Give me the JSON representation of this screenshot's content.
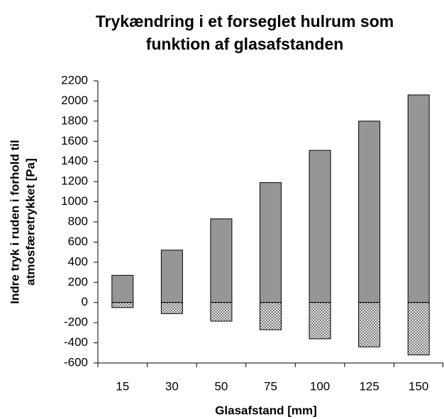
{
  "chart_data": {
    "type": "bar",
    "title": [
      "Trykændring i et forseglet hulrum som",
      "funktion af glasafstanden"
    ],
    "x_label": "Glasafstand   [mm]",
    "y_label": [
      "Indre tryk i ruden i forhold til",
      "atmosfæretrykket   [Pa]"
    ],
    "categories": [
      "15",
      "30",
      "50",
      "75",
      "100",
      "125",
      "150"
    ],
    "series": [
      {
        "color": "#969696",
        "values": [
          270,
          520,
          830,
          1190,
          1510,
          1800,
          2060
        ]
      },
      {
        "color": "#808080",
        "pattern": "crosshatch",
        "values": [
          -50,
          -110,
          -185,
          -270,
          -360,
          -440,
          -520
        ]
      }
    ],
    "ylim": [
      -600,
      2200
    ],
    "yticks": [
      -600,
      -400,
      -200,
      0,
      200,
      400,
      600,
      800,
      1000,
      1200,
      1400,
      1600,
      1800,
      2000,
      2200
    ]
  }
}
